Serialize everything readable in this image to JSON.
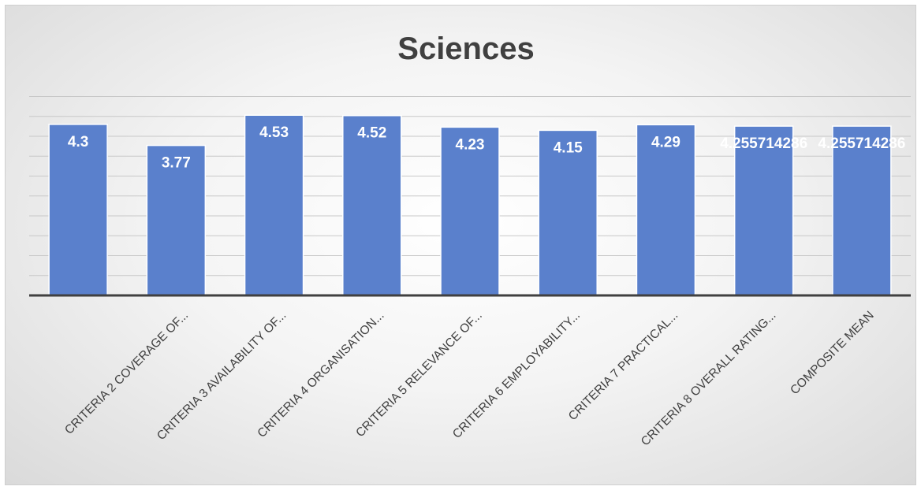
{
  "chart_data": {
    "type": "bar",
    "title": "Sciences",
    "xlabel": "",
    "ylabel": "",
    "categories": [
      "CRITERIA 2 COVERAGE OF...",
      "CRITERIA 3  AVAILABILITY OF...",
      "CRITERIA 4 ORGANISATION...",
      "CRITERIA 5  RELEVANCE OF...",
      "CRITERIA 6 EMPLOYABILITY...",
      "CRITERIA 7 PRACTICAL...",
      "CRITERIA 8 OVERALL RATING...",
      "COMPOSITE MEAN"
    ],
    "leading_values": [
      4.3,
      3.77,
      4.53,
      4.52,
      4.23,
      4.15,
      4.29
    ],
    "leading_labels": [
      "4.3",
      "3.77",
      "4.53",
      "4.52",
      "4.23",
      "4.15",
      "4.29"
    ],
    "values": [
      4.255714286,
      4.255714286,
      4.255714286,
      4.255714286,
      4.255714286,
      4.255714286,
      4.255714286,
      4.255714286
    ],
    "data_labels": [
      "4.255714286",
      "4.255714286",
      "4.255714286",
      "4.255714286",
      "4.255714286",
      "4.255714286",
      "4.255714286",
      "4.255714286"
    ],
    "ylim": [
      0,
      5
    ],
    "grid": true,
    "legend": "none",
    "colors": {
      "bar": "#5a80cc",
      "label": "#ffffff"
    }
  }
}
